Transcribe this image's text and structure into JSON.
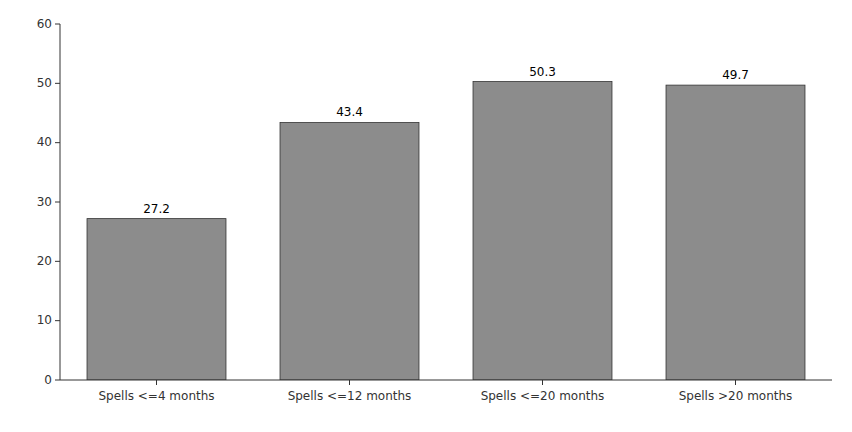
{
  "chart_data": {
    "type": "bar",
    "categories": [
      "Spells <=4 months",
      "Spells <=12 months",
      "Spells <=20 months",
      "Spells >20 months"
    ],
    "values": [
      27.2,
      43.4,
      50.3,
      49.7
    ],
    "color": "#8c8c8c",
    "ylim": [
      0,
      60
    ],
    "yticks": [
      0,
      10,
      20,
      30,
      40,
      50,
      60
    ],
    "grid": false,
    "data_labels": true
  }
}
